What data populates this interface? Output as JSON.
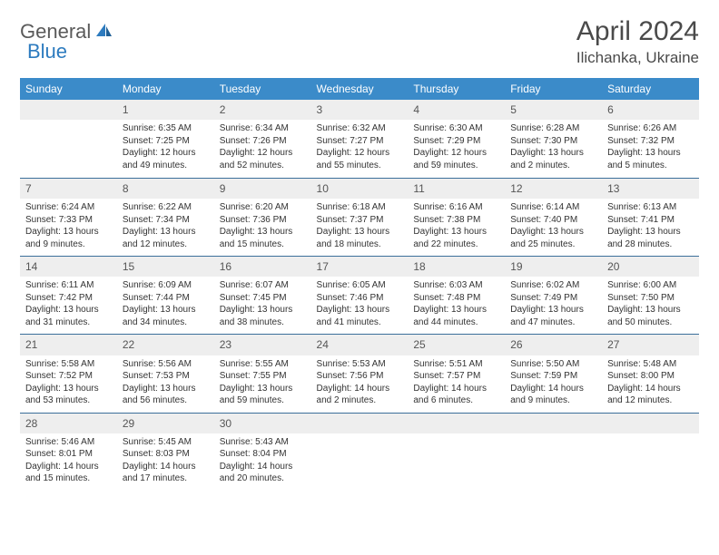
{
  "logo": {
    "text1": "General",
    "text2": "Blue"
  },
  "title": "April 2024",
  "subtitle": "Ilichanka, Ukraine",
  "colors": {
    "header_bg": "#3b8bc9",
    "header_text": "#ffffff",
    "daynum_bg": "#eeeeee",
    "row_border": "#3b6f9a",
    "body_text": "#333333",
    "logo_gray": "#5a5a5a",
    "logo_blue": "#2d7bbf"
  },
  "weekdays": [
    "Sunday",
    "Monday",
    "Tuesday",
    "Wednesday",
    "Thursday",
    "Friday",
    "Saturday"
  ],
  "weeks": [
    [
      null,
      {
        "n": "1",
        "sr": "6:35 AM",
        "ss": "7:25 PM",
        "dl": "12 hours and 49 minutes."
      },
      {
        "n": "2",
        "sr": "6:34 AM",
        "ss": "7:26 PM",
        "dl": "12 hours and 52 minutes."
      },
      {
        "n": "3",
        "sr": "6:32 AM",
        "ss": "7:27 PM",
        "dl": "12 hours and 55 minutes."
      },
      {
        "n": "4",
        "sr": "6:30 AM",
        "ss": "7:29 PM",
        "dl": "12 hours and 59 minutes."
      },
      {
        "n": "5",
        "sr": "6:28 AM",
        "ss": "7:30 PM",
        "dl": "13 hours and 2 minutes."
      },
      {
        "n": "6",
        "sr": "6:26 AM",
        "ss": "7:32 PM",
        "dl": "13 hours and 5 minutes."
      }
    ],
    [
      {
        "n": "7",
        "sr": "6:24 AM",
        "ss": "7:33 PM",
        "dl": "13 hours and 9 minutes."
      },
      {
        "n": "8",
        "sr": "6:22 AM",
        "ss": "7:34 PM",
        "dl": "13 hours and 12 minutes."
      },
      {
        "n": "9",
        "sr": "6:20 AM",
        "ss": "7:36 PM",
        "dl": "13 hours and 15 minutes."
      },
      {
        "n": "10",
        "sr": "6:18 AM",
        "ss": "7:37 PM",
        "dl": "13 hours and 18 minutes."
      },
      {
        "n": "11",
        "sr": "6:16 AM",
        "ss": "7:38 PM",
        "dl": "13 hours and 22 minutes."
      },
      {
        "n": "12",
        "sr": "6:14 AM",
        "ss": "7:40 PM",
        "dl": "13 hours and 25 minutes."
      },
      {
        "n": "13",
        "sr": "6:13 AM",
        "ss": "7:41 PM",
        "dl": "13 hours and 28 minutes."
      }
    ],
    [
      {
        "n": "14",
        "sr": "6:11 AM",
        "ss": "7:42 PM",
        "dl": "13 hours and 31 minutes."
      },
      {
        "n": "15",
        "sr": "6:09 AM",
        "ss": "7:44 PM",
        "dl": "13 hours and 34 minutes."
      },
      {
        "n": "16",
        "sr": "6:07 AM",
        "ss": "7:45 PM",
        "dl": "13 hours and 38 minutes."
      },
      {
        "n": "17",
        "sr": "6:05 AM",
        "ss": "7:46 PM",
        "dl": "13 hours and 41 minutes."
      },
      {
        "n": "18",
        "sr": "6:03 AM",
        "ss": "7:48 PM",
        "dl": "13 hours and 44 minutes."
      },
      {
        "n": "19",
        "sr": "6:02 AM",
        "ss": "7:49 PM",
        "dl": "13 hours and 47 minutes."
      },
      {
        "n": "20",
        "sr": "6:00 AM",
        "ss": "7:50 PM",
        "dl": "13 hours and 50 minutes."
      }
    ],
    [
      {
        "n": "21",
        "sr": "5:58 AM",
        "ss": "7:52 PM",
        "dl": "13 hours and 53 minutes."
      },
      {
        "n": "22",
        "sr": "5:56 AM",
        "ss": "7:53 PM",
        "dl": "13 hours and 56 minutes."
      },
      {
        "n": "23",
        "sr": "5:55 AM",
        "ss": "7:55 PM",
        "dl": "13 hours and 59 minutes."
      },
      {
        "n": "24",
        "sr": "5:53 AM",
        "ss": "7:56 PM",
        "dl": "14 hours and 2 minutes."
      },
      {
        "n": "25",
        "sr": "5:51 AM",
        "ss": "7:57 PM",
        "dl": "14 hours and 6 minutes."
      },
      {
        "n": "26",
        "sr": "5:50 AM",
        "ss": "7:59 PM",
        "dl": "14 hours and 9 minutes."
      },
      {
        "n": "27",
        "sr": "5:48 AM",
        "ss": "8:00 PM",
        "dl": "14 hours and 12 minutes."
      }
    ],
    [
      {
        "n": "28",
        "sr": "5:46 AM",
        "ss": "8:01 PM",
        "dl": "14 hours and 15 minutes."
      },
      {
        "n": "29",
        "sr": "5:45 AM",
        "ss": "8:03 PM",
        "dl": "14 hours and 17 minutes."
      },
      {
        "n": "30",
        "sr": "5:43 AM",
        "ss": "8:04 PM",
        "dl": "14 hours and 20 minutes."
      },
      null,
      null,
      null,
      null
    ]
  ],
  "labels": {
    "sunrise": "Sunrise:",
    "sunset": "Sunset:",
    "daylight": "Daylight:"
  }
}
